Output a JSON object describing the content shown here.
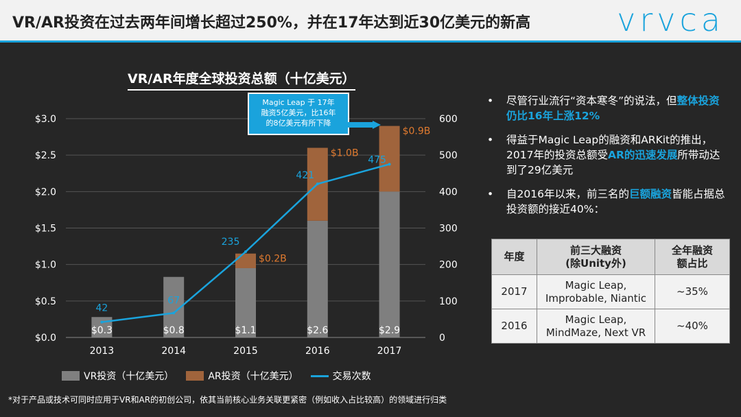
{
  "header": {
    "title": "VR/AR投资在过去两年间增长超过250%，并在17年达到近30亿美元的新高",
    "logo": "vrvca"
  },
  "chart_title": "VR/AR年度全球投资总额（十亿美元）",
  "callout": {
    "line1": "Magic Leap 于 17年",
    "line2": "融资5亿美元，比16年",
    "line3": "的8亿美元有所下降"
  },
  "chart_data": {
    "type": "bar",
    "categories": [
      "2013",
      "2014",
      "2015",
      "2016",
      "2017"
    ],
    "series": [
      {
        "name": "VR投资（十亿美元）",
        "values": [
          0.28,
          0.83,
          0.95,
          1.6,
          2.0
        ],
        "color": "#7f7f7f"
      },
      {
        "name": "AR投资（十亿美元）",
        "values": [
          0.0,
          0.0,
          0.2,
          1.0,
          0.9
        ],
        "color": "#a0643c"
      },
      {
        "name": "交易次数",
        "values": [
          42,
          67,
          235,
          421,
          475
        ],
        "color": "#1aa3dc",
        "type": "line",
        "axis": "right"
      }
    ],
    "total_labels": [
      "$0.3",
      "$0.8",
      "$1.1",
      "$2.6",
      "$2.9"
    ],
    "ar_labels": [
      "",
      "",
      "$0.2B",
      "$1.0B",
      "$0.9B"
    ],
    "deal_labels": [
      "42",
      "67",
      "235",
      "421",
      "475"
    ],
    "ylim_left": [
      0,
      3.0
    ],
    "ylim_right": [
      0,
      600
    ],
    "left_ticks": [
      "$0.0",
      "$0.5",
      "$1.0",
      "$1.5",
      "$2.0",
      "$2.5",
      "$3.0"
    ],
    "right_ticks": [
      "0",
      "100",
      "200",
      "300",
      "400",
      "500",
      "600"
    ],
    "grid": true
  },
  "legend": {
    "vr": "VR投资（十亿美元）",
    "ar": "AR投资（十亿美元）",
    "deals": "交易次数"
  },
  "bullets": {
    "b1_text": "尽管行业流行“资本寒冬”的说法，但",
    "b1_hl": "整体投资仍比16年上涨12%",
    "b2_pre": "得益于Magic Leap的融资和ARKit的推出，2017年的投资总额受",
    "b2_hl": "AR的迅速发展",
    "b2_post": "所带动达到了29亿美元",
    "b3_pre": "自2016年以来，前三名的",
    "b3_hl": "巨额融资",
    "b3_post": "皆能占据总投资额的接近40%："
  },
  "table": {
    "headers": [
      "年度",
      "前三大融资\n(除Unity外)",
      "全年融资\n额占比"
    ],
    "rows": [
      [
        "2017",
        "Magic Leap,\nImprobable, Niantic",
        "~35%"
      ],
      [
        "2016",
        "Magic Leap,\nMindMaze, Next VR",
        "~40%"
      ]
    ]
  },
  "footnote": "*对于产品或技术可同时应用于VR和AR的初创公司，依其当前核心业务关联更紧密（例如收入占比较高）的领域进行归类"
}
